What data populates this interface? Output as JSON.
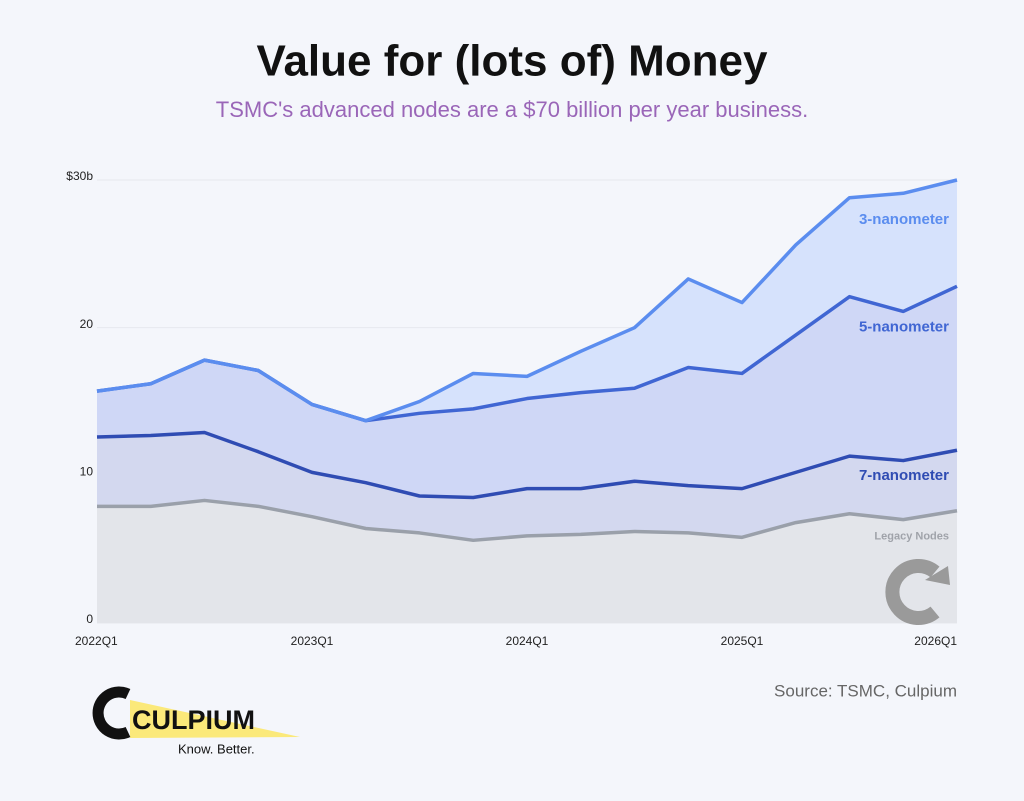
{
  "chart_data": {
    "type": "stacked_area",
    "title": "Value for (lots of) Money",
    "subtitle": "TSMC's advanced nodes are a $70 billion per year business.",
    "source": "Source: TSMC, Culpium",
    "logo": {
      "name": "CULPIUM",
      "tagline": "Know. Better."
    },
    "categories": [
      "2022Q1",
      null,
      null,
      null,
      "2023Q1",
      null,
      null,
      null,
      "2024Q1",
      null,
      null,
      null,
      "2025Q1",
      null,
      null,
      null,
      "2026Q1"
    ],
    "ylim": [
      0,
      30
    ],
    "yticks": [
      0,
      10,
      20,
      {
        "value": 30,
        "label": "$30b"
      }
    ],
    "grid": true,
    "series": [
      {
        "name": "Legacy Nodes",
        "color": "#9aa0aa",
        "fill": "#e3e5ea",
        "values": [
          7.9,
          7.9,
          8.3,
          7.9,
          7.2,
          6.4,
          6.1,
          5.6,
          5.9,
          6.0,
          6.2,
          6.1,
          5.8,
          6.8,
          7.4,
          7.0,
          7.6
        ]
      },
      {
        "name": "7-nanometer",
        "color": "#2f4cb3",
        "fill": "#d3d8ef",
        "values": [
          4.7,
          4.8,
          4.6,
          3.7,
          3.0,
          3.1,
          2.5,
          2.9,
          3.2,
          3.1,
          3.4,
          3.2,
          3.3,
          3.4,
          3.9,
          4.0,
          4.1
        ]
      },
      {
        "name": "5-nanometer",
        "color": "#4066d3",
        "fill": "#cfd7f6",
        "values": [
          3.1,
          3.5,
          4.9,
          5.5,
          4.6,
          4.2,
          5.6,
          6.0,
          6.1,
          6.5,
          6.3,
          8.0,
          7.8,
          9.3,
          10.8,
          10.1,
          11.1
        ]
      },
      {
        "name": "3-nanometer",
        "color": "#5b8def",
        "fill": "#d6e2fc",
        "values": [
          0,
          0,
          0,
          0,
          0,
          0,
          0.8,
          2.4,
          1.5,
          2.8,
          4.1,
          6.0,
          4.8,
          6.1,
          6.7,
          8.0,
          7.2
        ]
      }
    ]
  }
}
